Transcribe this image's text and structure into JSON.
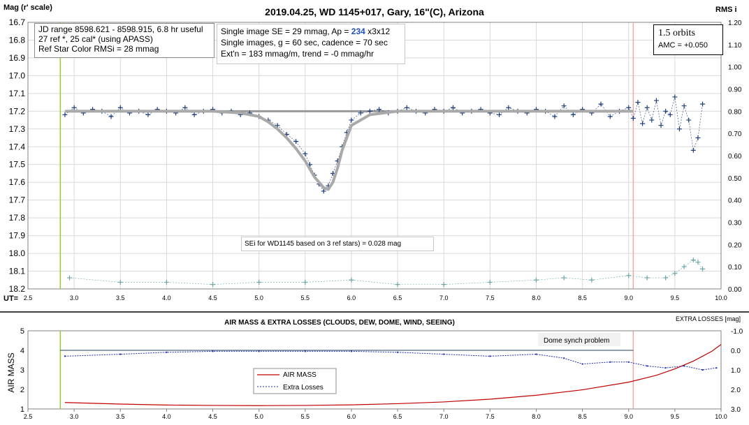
{
  "chart_data": [
    {
      "type": "scatter",
      "title": "2019.04.25, WD 1145+017, Gary, 16\"(C), Arizona",
      "ylabel": "Mag (r' scale)",
      "y2label": "RMS i",
      "xlabel": "UT=",
      "xlim": [
        2.5,
        10.0
      ],
      "ylim": [
        16.7,
        18.2
      ],
      "y2lim": [
        0.0,
        1.2
      ],
      "y_inverted": true,
      "grid": true,
      "x_ticks": [
        "2.5",
        "3.0",
        "3.5",
        "4.0",
        "4.5",
        "5.0",
        "5.5",
        "6.0",
        "6.5",
        "7.0",
        "7.5",
        "8.0",
        "8.5",
        "9.0",
        "9.5",
        "10.0"
      ],
      "y_ticks": [
        "16.7",
        "16.8",
        "16.9",
        "17.0",
        "17.1",
        "17.2",
        "17.3",
        "17.4",
        "17.5",
        "17.6",
        "17.7",
        "17.8",
        "17.9",
        "18.0",
        "18.1",
        "18.2"
      ],
      "y2_ticks": [
        "1.20",
        "1.10",
        "1.00",
        "0.90",
        "0.80",
        "0.70",
        "0.60",
        "0.50",
        "0.40",
        "0.30",
        "0.20",
        "0.10",
        "0.00"
      ],
      "vertical_lines": [
        {
          "x": 2.85,
          "color": "#9acd32"
        },
        {
          "x": 9.05,
          "color": "#f4a6a6"
        }
      ],
      "reference_line": {
        "x": [
          2.9,
          9.05
        ],
        "y": 17.2,
        "color": "#999999"
      },
      "series": [
        {
          "marker": "+",
          "color": "#1f3f7a",
          "x": [
            2.9,
            3.0,
            3.1,
            3.2,
            3.3,
            3.4,
            3.5,
            3.6,
            3.7,
            3.8,
            3.9,
            4.0,
            4.1,
            4.2,
            4.3,
            4.4,
            4.5,
            4.6,
            4.7,
            4.8,
            4.9,
            5.0,
            5.1,
            5.2,
            5.3,
            5.4,
            5.5,
            5.55,
            5.6,
            5.65,
            5.7,
            5.75,
            5.8,
            5.85,
            5.9,
            5.95,
            6.0,
            6.1,
            6.2,
            6.3,
            6.4,
            6.5,
            6.6,
            6.7,
            6.8,
            6.9,
            7.0,
            7.1,
            7.2,
            7.3,
            7.4,
            7.5,
            7.6,
            7.7,
            7.8,
            7.9,
            8.0,
            8.1,
            8.2,
            8.3,
            8.4,
            8.5,
            8.6,
            8.7,
            8.8,
            8.9,
            9.0,
            9.05,
            9.1,
            9.15,
            9.2,
            9.25,
            9.3,
            9.35,
            9.4,
            9.45,
            9.5,
            9.55,
            9.6,
            9.65,
            9.7,
            9.75,
            9.8
          ],
          "y": [
            17.22,
            17.18,
            17.21,
            17.19,
            17.2,
            17.23,
            17.18,
            17.21,
            17.2,
            17.22,
            17.19,
            17.2,
            17.21,
            17.18,
            17.22,
            17.2,
            17.19,
            17.21,
            17.2,
            17.22,
            17.21,
            17.23,
            17.25,
            17.28,
            17.33,
            17.37,
            17.44,
            17.5,
            17.56,
            17.61,
            17.65,
            17.62,
            17.55,
            17.48,
            17.4,
            17.32,
            17.25,
            17.21,
            17.2,
            17.19,
            17.21,
            17.2,
            17.18,
            17.2,
            17.21,
            17.19,
            17.2,
            17.18,
            17.21,
            17.2,
            17.19,
            17.21,
            17.22,
            17.18,
            17.2,
            17.21,
            17.19,
            17.2,
            17.23,
            17.17,
            17.22,
            17.19,
            17.21,
            17.16,
            17.23,
            17.2,
            17.18,
            17.24,
            17.15,
            17.27,
            17.18,
            17.25,
            17.14,
            17.28,
            17.2,
            17.22,
            17.12,
            17.3,
            17.17,
            17.25,
            17.42,
            17.35,
            17.16
          ]
        },
        {
          "marker": "line",
          "color": "#a9a9a9",
          "x": [
            2.9,
            3.5,
            4.0,
            4.5,
            4.8,
            5.0,
            5.1,
            5.2,
            5.3,
            5.4,
            5.5,
            5.6,
            5.7,
            5.75,
            5.8,
            5.85,
            5.9,
            6.0,
            6.2,
            6.5,
            7.0,
            8.0,
            9.05
          ],
          "y": [
            17.2,
            17.2,
            17.2,
            17.2,
            17.21,
            17.23,
            17.26,
            17.3,
            17.35,
            17.41,
            17.48,
            17.57,
            17.63,
            17.64,
            17.6,
            17.52,
            17.42,
            17.28,
            17.22,
            17.2,
            17.2,
            17.2,
            17.2
          ]
        },
        {
          "marker": "+",
          "axis": "y2",
          "color": "#6aa6a6",
          "x": [
            2.95,
            3.5,
            4.0,
            4.5,
            5.0,
            5.5,
            6.0,
            6.5,
            7.0,
            7.5,
            8.0,
            8.3,
            8.6,
            9.0,
            9.2,
            9.4,
            9.5,
            9.6,
            9.7,
            9.75,
            9.8
          ],
          "y": [
            0.05,
            0.03,
            0.03,
            0.02,
            0.03,
            0.03,
            0.04,
            0.02,
            0.02,
            0.03,
            0.04,
            0.05,
            0.04,
            0.06,
            0.05,
            0.05,
            0.07,
            0.1,
            0.13,
            0.12,
            0.09
          ]
        }
      ]
    },
    {
      "type": "line",
      "title": "AIR MASS & EXTRA LOSSES (CLOUDS, DEW, DOME, WIND, SEEING)",
      "ylabel": "AIR MASS",
      "y2label": "EXTRA LOSSES [mag]",
      "xlim": [
        2.5,
        10.0
      ],
      "ylim": [
        1,
        5
      ],
      "y2lim": [
        3.0,
        -1.0
      ],
      "x_ticks": [
        "2.5",
        "3.0",
        "3.5",
        "4.0",
        "4.5",
        "5.0",
        "5.5",
        "6.0",
        "6.5",
        "7.0",
        "7.5",
        "8.0",
        "8.5",
        "9.0",
        "9.5",
        "10.0"
      ],
      "y_ticks": [
        "5",
        "4",
        "3",
        "2",
        "1"
      ],
      "y2_ticks": [
        "-1.0",
        "0.0",
        "1.0",
        "2.0",
        "3.0"
      ],
      "grid": false,
      "vertical_lines": [
        {
          "x": 2.85,
          "color": "#9acd32"
        },
        {
          "x": 9.05,
          "color": "#f4a6a6"
        }
      ],
      "reference_line": {
        "x": [
          2.85,
          9.05
        ],
        "y2": 0.0,
        "color": "#1f3f5f"
      },
      "legend": {
        "position": "center-left",
        "entries": [
          "AIR MASS",
          "Extra Losses"
        ]
      },
      "series": [
        {
          "name": "AIR MASS",
          "color": "#c00000",
          "x": [
            2.9,
            3.5,
            4.0,
            4.5,
            5.0,
            5.5,
            6.0,
            6.5,
            7.0,
            7.5,
            8.0,
            8.5,
            9.0,
            9.3,
            9.5,
            9.7,
            9.9,
            10.0
          ],
          "y": [
            1.33,
            1.25,
            1.2,
            1.18,
            1.17,
            1.18,
            1.21,
            1.27,
            1.36,
            1.5,
            1.7,
            1.98,
            2.37,
            2.72,
            3.05,
            3.45,
            3.95,
            4.3
          ]
        },
        {
          "name": "Extra Losses",
          "color": "#1f2fa8",
          "x": [
            2.9,
            3.5,
            4.0,
            4.5,
            5.0,
            5.5,
            6.0,
            6.5,
            7.0,
            7.5,
            8.0,
            8.3,
            8.5,
            8.8,
            9.0,
            9.2,
            9.4,
            9.6,
            9.8,
            9.95
          ],
          "y2": [
            0.3,
            0.2,
            0.1,
            0.05,
            0.05,
            0.05,
            0.05,
            0.1,
            0.2,
            0.3,
            0.2,
            0.4,
            0.7,
            0.6,
            0.6,
            0.8,
            0.9,
            0.8,
            1.0,
            0.9
          ]
        }
      ]
    }
  ],
  "annotations": {
    "info_box": [
      "JD range 8598.621 - 8598.915, 6.8 hr useful",
      "27 ref *, 25 cal* (using APASS)",
      "Ref Star Color RMSi = 28 mmag"
    ],
    "single_image_box": {
      "line1_prefix": "Single image SE = 29 mmag, Ap = ",
      "line1_ap": "234",
      "line1_suffix": " x3x12",
      "line2": "Single images, g = 60 sec, cadence = 70 sec",
      "line3": "Ext'n = 183 mmag/m, trend = -0 mmag/hr"
    },
    "orbits_box": [
      "1.5 orbits",
      "AMC = +0.050"
    ],
    "sei_note": "SEi for WD1145 based on 3 ref stars) = 0.028 mag",
    "dome_note": "Dome synch problem"
  },
  "colors": {
    "highlight": "#1f4fbf",
    "grid": "#d9d9d9",
    "separator": "#000000"
  }
}
